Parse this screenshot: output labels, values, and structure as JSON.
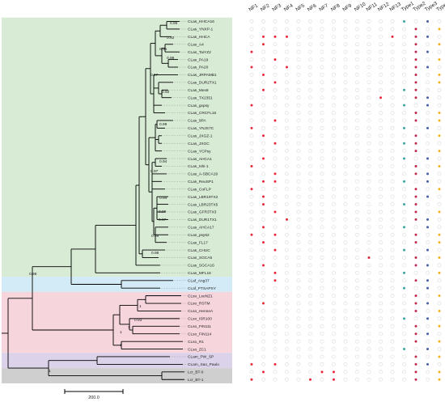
{
  "columns": [
    "NF1",
    "NF2",
    "NF3",
    "NF4",
    "NF5",
    "NF6",
    "NF7",
    "NF8",
    "NF9",
    "NF10",
    "NF11",
    "NF12",
    "NF13",
    "Type1",
    "Type2",
    "Type3",
    "Type4"
  ],
  "taxa": [
    "CLas_HHCA16",
    "CLas_YNXP-1",
    "CLas_HHCA",
    "CLas_A4",
    "CLas_TaiYZ2",
    "CLas_PA19",
    "CLas_PA20",
    "CLas_JRPAMB1",
    "CLas_DUR2TX1",
    "CLas_Mex8",
    "CLas_TX2351",
    "CLas_gxpsy",
    "CLas_CRCFL16",
    "CLas_9PA",
    "CLas_YNJS7C",
    "CLas_JXGZ-1",
    "CLas_JXGC",
    "CLas_YCPsy",
    "CLas_AHCA1",
    "CLas_Ishi-1",
    "CLas_A-SBCA19",
    "CLas_ReuSP1",
    "CLas_CoFLP",
    "CLas_LBR19TX2",
    "CLas_LBR23TX5",
    "CLas_GFR3TX3",
    "CLas_DUR1TX1",
    "CLas_AHCA17",
    "CLas_psy62",
    "CLas_FL17",
    "CLas_CHUC",
    "CLas_SGCA5",
    "CLas_SGCA16",
    "CLas_MFL16",
    "CLaf_Ang37",
    "CLaf_PTSAPSY",
    "CLso_LsoNZ1",
    "CLso_RSTM",
    "CLso_HenneA",
    "CLso_ISR100",
    "CLso_FIN111",
    "CLso_FIN114",
    "CLso_R1",
    "CLso_ZC1",
    "CLam_PW_SP",
    "CLam_Sao_Paulo",
    "Lcr_BT-0",
    "Lcr_BT-1"
  ],
  "bootstrap": [
    "0.95",
    "0.92",
    "0.95",
    "0.99",
    "0.97",
    "0.92",
    "0.99",
    "0.94",
    "0.97",
    "0.94",
    "0.98",
    "0.97",
    "0.99",
    "0.98",
    "0.98",
    "0.93",
    "1",
    "1",
    "1",
    "1",
    "1"
  ],
  "scale_label": "200.0",
  "colors": {
    "absent": "#d9d9d9",
    "present": "#e8283a",
    "type1": "#3aa6a0",
    "type2": "#c02a4f",
    "type3": "#4860a8",
    "type4": "#f2b21c",
    "clade_clas": "#d7ebd5",
    "clade_claf": "#d3ebf6",
    "clade_clso": "#f7d5dd",
    "clade_clam": "#dcd3ea",
    "clade_lcr": "#cfcfcf",
    "branch": "#000000"
  },
  "presence": [
    [
      0,
      0,
      0,
      0,
      0,
      0,
      0,
      0,
      0,
      0,
      0,
      0,
      0,
      1,
      0,
      1,
      0
    ],
    [
      0,
      0,
      0,
      0,
      0,
      0,
      0,
      0,
      0,
      0,
      0,
      0,
      0,
      0,
      1,
      0,
      1
    ],
    [
      0,
      1,
      1,
      1,
      0,
      0,
      0,
      0,
      0,
      0,
      0,
      0,
      1,
      0,
      1,
      1,
      0
    ],
    [
      0,
      1,
      0,
      0,
      0,
      0,
      0,
      0,
      0,
      0,
      0,
      0,
      0,
      0,
      1,
      0,
      1
    ],
    [
      1,
      0,
      0,
      0,
      0,
      0,
      0,
      0,
      0,
      0,
      0,
      0,
      0,
      0,
      1,
      1,
      0
    ],
    [
      0,
      0,
      1,
      0,
      0,
      0,
      0,
      0,
      0,
      0,
      0,
      0,
      0,
      0,
      1,
      0,
      1
    ],
    [
      1,
      0,
      0,
      1,
      0,
      0,
      0,
      0,
      0,
      0,
      0,
      0,
      0,
      0,
      1,
      1,
      0
    ],
    [
      0,
      1,
      0,
      0,
      0,
      0,
      0,
      0,
      0,
      0,
      0,
      0,
      0,
      0,
      1,
      0,
      1
    ],
    [
      0,
      0,
      1,
      0,
      0,
      0,
      0,
      0,
      0,
      0,
      0,
      0,
      0,
      0,
      1,
      0,
      1
    ],
    [
      0,
      1,
      0,
      0,
      0,
      0,
      0,
      0,
      0,
      0,
      0,
      0,
      0,
      1,
      1,
      0,
      0
    ],
    [
      0,
      0,
      0,
      0,
      0,
      0,
      0,
      0,
      0,
      0,
      0,
      1,
      0,
      0,
      1,
      1,
      0
    ],
    [
      1,
      0,
      0,
      0,
      0,
      0,
      0,
      0,
      0,
      0,
      0,
      0,
      0,
      1,
      0,
      1,
      0
    ],
    [
      0,
      0,
      0,
      0,
      0,
      0,
      0,
      0,
      0,
      0,
      0,
      0,
      0,
      0,
      1,
      0,
      1
    ],
    [
      0,
      0,
      1,
      0,
      0,
      0,
      0,
      0,
      0,
      0,
      0,
      0,
      0,
      0,
      1,
      0,
      1
    ],
    [
      1,
      0,
      0,
      0,
      0,
      0,
      0,
      0,
      0,
      0,
      0,
      0,
      0,
      1,
      0,
      1,
      0
    ],
    [
      0,
      1,
      0,
      0,
      0,
      0,
      0,
      0,
      0,
      0,
      0,
      0,
      0,
      0,
      1,
      0,
      1
    ],
    [
      0,
      0,
      1,
      0,
      0,
      0,
      0,
      0,
      0,
      0,
      0,
      0,
      0,
      1,
      1,
      0,
      0
    ],
    [
      0,
      0,
      0,
      0,
      0,
      0,
      0,
      0,
      0,
      0,
      0,
      0,
      0,
      0,
      1,
      0,
      1
    ],
    [
      0,
      1,
      0,
      0,
      0,
      0,
      0,
      0,
      0,
      0,
      0,
      0,
      0,
      1,
      0,
      1,
      0
    ],
    [
      1,
      0,
      0,
      0,
      0,
      0,
      0,
      0,
      0,
      0,
      0,
      0,
      0,
      0,
      1,
      0,
      1
    ],
    [
      0,
      0,
      1,
      0,
      0,
      0,
      0,
      0,
      0,
      0,
      0,
      0,
      0,
      0,
      1,
      1,
      0
    ],
    [
      0,
      1,
      1,
      0,
      0,
      0,
      0,
      0,
      0,
      0,
      0,
      0,
      0,
      1,
      0,
      1,
      0
    ],
    [
      1,
      0,
      0,
      0,
      0,
      0,
      0,
      0,
      0,
      0,
      0,
      0,
      0,
      0,
      1,
      0,
      1
    ],
    [
      0,
      1,
      0,
      0,
      0,
      0,
      0,
      0,
      0,
      0,
      0,
      0,
      0,
      0,
      1,
      1,
      0
    ],
    [
      0,
      1,
      0,
      0,
      0,
      0,
      0,
      0,
      0,
      0,
      0,
      0,
      0,
      1,
      1,
      0,
      0
    ],
    [
      0,
      0,
      1,
      0,
      0,
      0,
      0,
      0,
      0,
      0,
      0,
      0,
      0,
      0,
      1,
      0,
      1
    ],
    [
      0,
      0,
      0,
      1,
      0,
      0,
      0,
      0,
      0,
      0,
      0,
      0,
      0,
      0,
      1,
      1,
      0
    ],
    [
      0,
      1,
      0,
      0,
      0,
      0,
      0,
      0,
      0,
      0,
      0,
      0,
      0,
      1,
      0,
      1,
      0
    ],
    [
      1,
      0,
      1,
      0,
      0,
      0,
      0,
      0,
      0,
      0,
      0,
      0,
      0,
      0,
      1,
      0,
      1
    ],
    [
      0,
      1,
      0,
      0,
      0,
      0,
      0,
      0,
      0,
      0,
      0,
      0,
      0,
      0,
      1,
      0,
      1
    ],
    [
      0,
      0,
      1,
      0,
      0,
      0,
      0,
      0,
      0,
      0,
      0,
      0,
      0,
      1,
      0,
      1,
      0
    ],
    [
      0,
      0,
      0,
      0,
      0,
      0,
      0,
      0,
      0,
      0,
      1,
      0,
      0,
      0,
      1,
      0,
      1
    ],
    [
      0,
      1,
      0,
      0,
      0,
      0,
      0,
      0,
      0,
      0,
      0,
      0,
      0,
      0,
      1,
      1,
      0
    ],
    [
      0,
      0,
      1,
      0,
      0,
      0,
      0,
      0,
      0,
      0,
      0,
      0,
      0,
      1,
      0,
      0,
      1
    ],
    [
      0,
      0,
      1,
      0,
      0,
      0,
      0,
      0,
      0,
      0,
      0,
      0,
      0,
      0,
      1,
      1,
      0
    ],
    [
      0,
      0,
      0,
      0,
      0,
      0,
      0,
      0,
      0,
      0,
      0,
      0,
      0,
      1,
      0,
      1,
      0
    ],
    [
      0,
      0,
      0,
      0,
      0,
      0,
      0,
      0,
      0,
      0,
      0,
      0,
      0,
      0,
      1,
      0,
      1
    ],
    [
      0,
      1,
      0,
      0,
      0,
      0,
      0,
      0,
      0,
      0,
      0,
      0,
      0,
      0,
      1,
      1,
      0
    ],
    [
      0,
      0,
      0,
      0,
      0,
      0,
      0,
      0,
      0,
      0,
      0,
      0,
      0,
      0,
      1,
      0,
      1
    ],
    [
      0,
      0,
      0,
      0,
      0,
      0,
      0,
      0,
      0,
      0,
      0,
      0,
      0,
      1,
      0,
      1,
      0
    ],
    [
      0,
      0,
      0,
      0,
      0,
      0,
      0,
      0,
      0,
      0,
      0,
      0,
      0,
      0,
      1,
      0,
      1
    ],
    [
      0,
      0,
      0,
      0,
      0,
      0,
      0,
      0,
      0,
      0,
      0,
      0,
      0,
      0,
      1,
      1,
      0
    ],
    [
      0,
      0,
      0,
      0,
      0,
      0,
      0,
      0,
      0,
      0,
      0,
      0,
      0,
      0,
      1,
      0,
      1
    ],
    [
      0,
      0,
      0,
      0,
      0,
      0,
      0,
      0,
      0,
      0,
      0,
      0,
      0,
      1,
      0,
      1,
      0
    ],
    [
      0,
      0,
      0,
      0,
      0,
      0,
      0,
      0,
      0,
      0,
      0,
      0,
      0,
      0,
      1,
      0,
      1
    ],
    [
      1,
      0,
      1,
      0,
      0,
      0,
      0,
      0,
      0,
      0,
      0,
      0,
      0,
      0,
      1,
      1,
      0
    ],
    [
      0,
      1,
      0,
      0,
      0,
      0,
      1,
      1,
      0,
      0,
      0,
      0,
      0,
      0,
      1,
      0,
      1
    ],
    [
      1,
      0,
      0,
      0,
      0,
      1,
      0,
      1,
      0,
      0,
      0,
      0,
      0,
      0,
      1,
      0,
      1
    ]
  ]
}
